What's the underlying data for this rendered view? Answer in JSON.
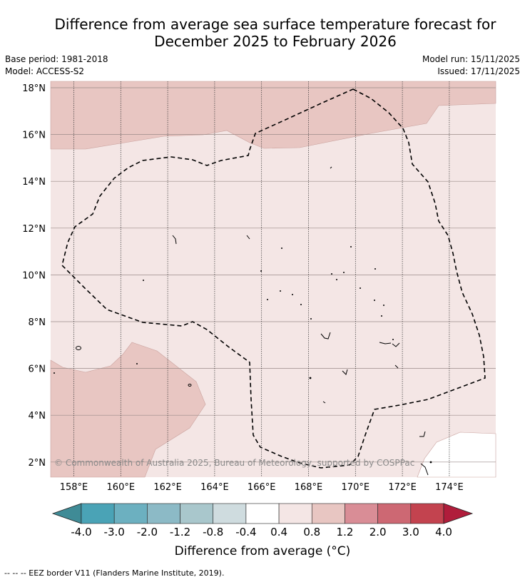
{
  "header": {
    "title_line1": "Difference from average sea surface temperature forecast for",
    "title_line2": "December 2025 to February 2026"
  },
  "meta": {
    "base_period": "Base period: 1981-2018",
    "model": "Model: ACCESS-S2",
    "model_run": "Model run: 15/11/2025",
    "issued": "Issued: 17/11/2025"
  },
  "map": {
    "lat_labels": [
      "18°N",
      "16°N",
      "14°N",
      "12°N",
      "10°N",
      "8°N",
      "6°N",
      "4°N",
      "2°N"
    ],
    "lon_labels": [
      "158°E",
      "160°E",
      "162°E",
      "164°E",
      "166°E",
      "168°E",
      "170°E",
      "172°E",
      "174°E"
    ],
    "copyright": "© Commonwealth of Australia 2025, Bureau of Meteorology, supported by COSPPac"
  },
  "colorbar": {
    "title": "Difference from average (°C)",
    "labels": [
      "-4.0",
      "-3.0",
      "-2.0",
      "-1.2",
      "-0.8",
      "-0.4",
      "0.4",
      "0.8",
      "1.2",
      "2.0",
      "3.0",
      "4.0"
    ],
    "colors": [
      "#3f8b96",
      "#4aa3b6",
      "#6cb0c0",
      "#8cbac6",
      "#a9c7cc",
      "#cfdcdf",
      "#ffffff",
      "#f4e6e5",
      "#e8c6c2",
      "#d98d96",
      "#cd6873",
      "#c3434f",
      "#b01d3b"
    ]
  },
  "footer": {
    "credit": "--  --  -- EEZ border V11 (Flanders Marine Institute, 2019)."
  }
}
